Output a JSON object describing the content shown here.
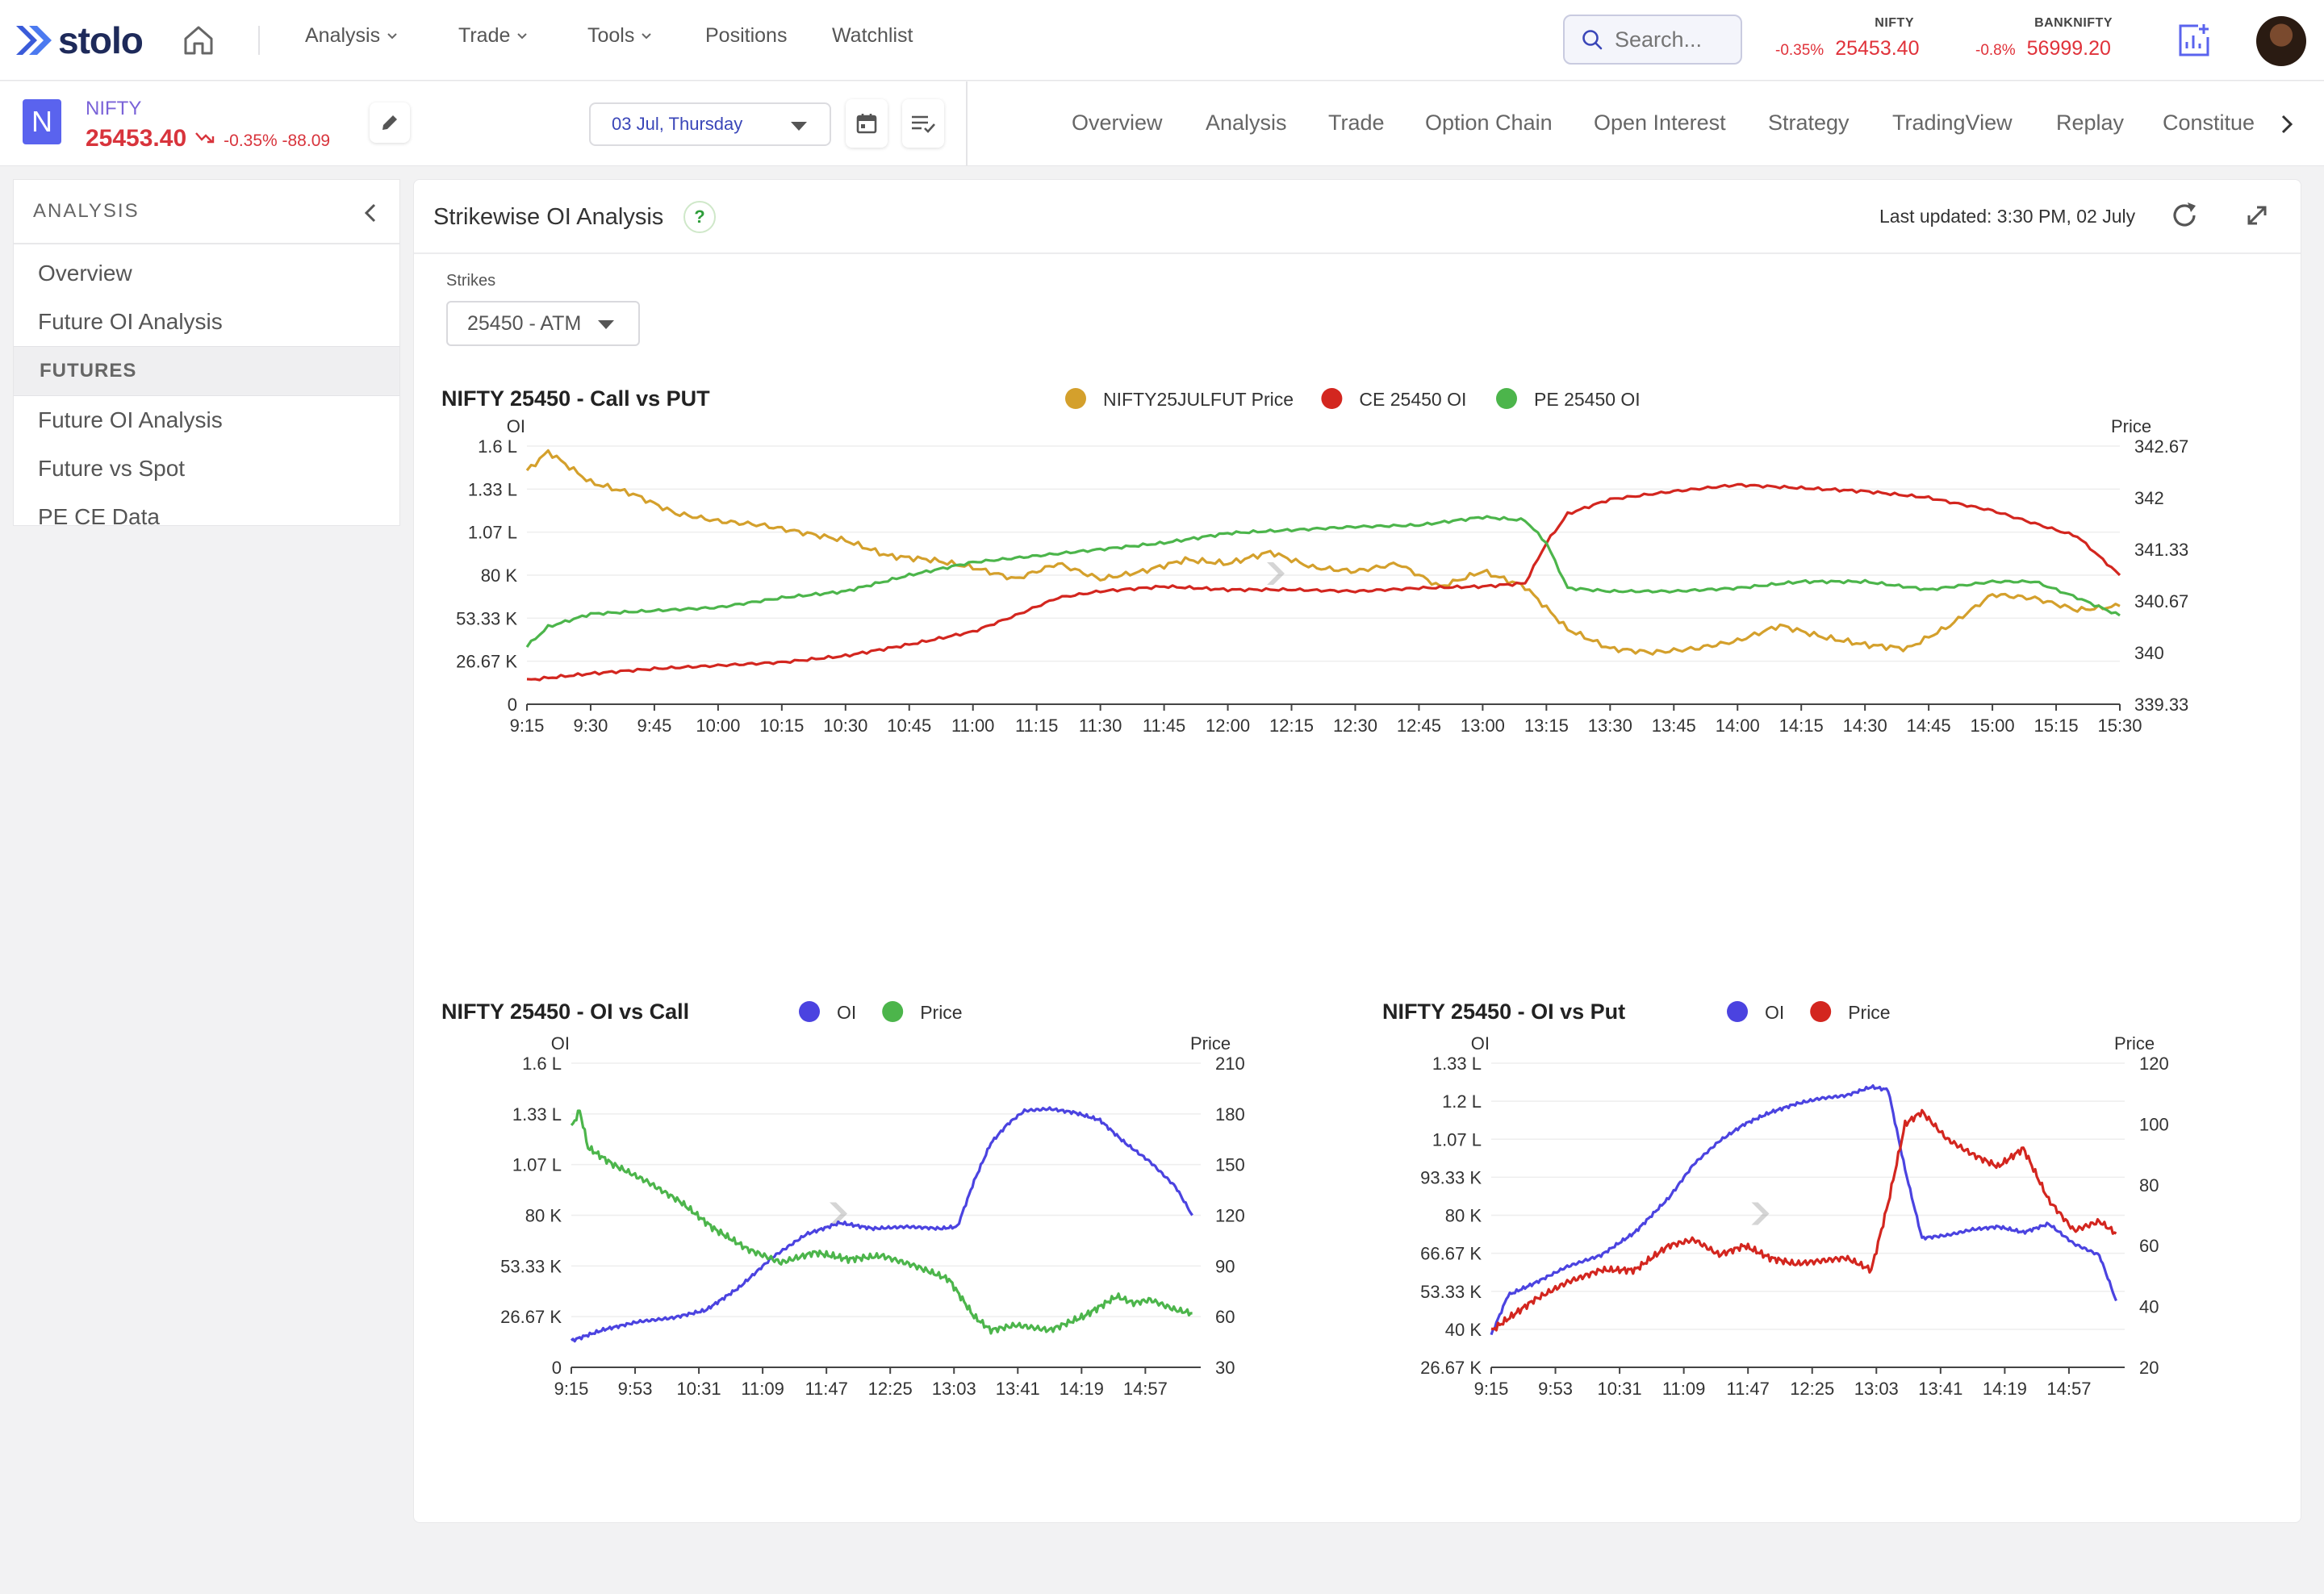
{
  "brand": {
    "name": "stolo"
  },
  "nav": {
    "items": [
      {
        "label": "Analysis",
        "dropdown": true
      },
      {
        "label": "Trade",
        "dropdown": true
      },
      {
        "label": "Tools",
        "dropdown": true
      },
      {
        "label": "Positions",
        "dropdown": false
      },
      {
        "label": "Watchlist",
        "dropdown": false
      }
    ],
    "search_placeholder": "Search..."
  },
  "tickers": [
    {
      "name": "NIFTY",
      "pct": "-0.35%",
      "value": "25453.40"
    },
    {
      "name": "BANKNIFTY",
      "pct": "-0.8%",
      "value": "56999.20"
    }
  ],
  "symbol": {
    "badge": "N",
    "name": "NIFTY",
    "price": "25453.40",
    "change": "-0.35% -88.09"
  },
  "date_selector": {
    "value": "03 Jul, Thursday"
  },
  "tabs": [
    "Overview",
    "Analysis",
    "Trade",
    "Option Chain",
    "Open Interest",
    "Strategy",
    "TradingView",
    "Replay",
    "Constitue"
  ],
  "sidebar": {
    "header": "ANALYSIS",
    "items_top": [
      "Overview",
      "Future OI Analysis"
    ],
    "group": "FUTURES",
    "items_group": [
      "Future OI Analysis",
      "Future vs Spot",
      "PE CE Data"
    ]
  },
  "panel": {
    "title": "Strikewise OI Analysis",
    "help": "?",
    "last_updated": "Last updated: 3:30 PM, 02 July",
    "strikes_label": "Strikes",
    "strikes_value": "25450 - ATM"
  },
  "colors": {
    "gold": "#d4a02c",
    "red": "#d3261f",
    "green": "#4cb54b",
    "blue": "#4b43e0",
    "accent": "#3a46b8"
  },
  "chart_data": [
    {
      "type": "line",
      "title": "NIFTY 25450 - Call vs PUT",
      "ylabel_left": "OI",
      "ylabel_right": "Price",
      "x_ticks": [
        "9:15",
        "9:30",
        "9:45",
        "10:00",
        "10:15",
        "10:30",
        "10:45",
        "11:00",
        "11:15",
        "11:30",
        "11:45",
        "12:00",
        "12:15",
        "12:30",
        "12:45",
        "13:00",
        "13:15",
        "13:30",
        "13:45",
        "14:00",
        "14:15",
        "14:30",
        "14:45",
        "15:00",
        "15:15",
        "15:30"
      ],
      "y_left_ticks": [
        "0",
        "26.67 K",
        "53.33 K",
        "80 K",
        "1.07 L",
        "1.33 L",
        "1.6 L"
      ],
      "y_right_ticks": [
        "339.33",
        "340",
        "340.67",
        "341.33",
        "342",
        "342.67"
      ],
      "ylim_left": [
        0,
        160000
      ],
      "ylim_right": [
        339.33,
        342.67
      ],
      "legend": "top-center",
      "series": [
        {
          "name": "NIFTY25JULFUT Price",
          "axis": "right",
          "color": "#d4a02c",
          "x": [
            "9:15",
            "9:20",
            "9:30",
            "9:40",
            "9:50",
            "10:00",
            "10:10",
            "10:20",
            "10:30",
            "10:40",
            "10:50",
            "11:00",
            "11:10",
            "11:20",
            "11:30",
            "11:40",
            "11:50",
            "12:00",
            "12:10",
            "12:20",
            "12:30",
            "12:40",
            "12:50",
            "13:00",
            "13:10",
            "13:20",
            "13:30",
            "13:40",
            "13:50",
            "14:00",
            "14:10",
            "14:20",
            "14:30",
            "14:40",
            "14:50",
            "15:00",
            "15:10",
            "15:20",
            "15:30"
          ],
          "values": [
            342.35,
            342.6,
            342.2,
            342.05,
            341.8,
            341.7,
            341.65,
            341.55,
            341.45,
            341.25,
            341.2,
            341.1,
            340.95,
            341.15,
            340.95,
            341.05,
            341.2,
            341.15,
            341.3,
            341.1,
            341.05,
            341.15,
            340.85,
            341.05,
            340.85,
            340.3,
            340.05,
            340.0,
            340.05,
            340.15,
            340.35,
            340.2,
            340.1,
            340.05,
            340.35,
            340.75,
            340.7,
            340.55,
            340.6
          ]
        },
        {
          "name": "CE 25450 OI",
          "axis": "left",
          "color": "#d3261f",
          "x": [
            "9:15",
            "9:30",
            "9:45",
            "10:00",
            "10:15",
            "10:30",
            "10:45",
            "11:00",
            "11:10",
            "11:20",
            "11:30",
            "11:45",
            "12:00",
            "12:15",
            "12:30",
            "12:45",
            "13:00",
            "13:10",
            "13:15",
            "13:20",
            "13:30",
            "13:45",
            "14:00",
            "14:15",
            "14:30",
            "14:45",
            "15:00",
            "15:10",
            "15:20",
            "15:30"
          ],
          "values": [
            15000,
            19000,
            22000,
            24000,
            26000,
            30000,
            37000,
            45000,
            55000,
            66000,
            70000,
            73000,
            71000,
            71000,
            70000,
            72000,
            73000,
            75000,
            100000,
            118000,
            127000,
            132000,
            136000,
            134000,
            132000,
            128000,
            120000,
            112000,
            104000,
            80000
          ]
        },
        {
          "name": "PE 25450 OI",
          "axis": "left",
          "color": "#4cb54b",
          "x": [
            "9:15",
            "9:20",
            "9:30",
            "9:45",
            "10:00",
            "10:15",
            "10:30",
            "10:45",
            "11:00",
            "11:15",
            "11:30",
            "11:45",
            "12:00",
            "12:15",
            "12:30",
            "12:45",
            "13:00",
            "13:10",
            "13:15",
            "13:20",
            "13:30",
            "13:45",
            "14:00",
            "14:15",
            "14:30",
            "14:45",
            "15:00",
            "15:10",
            "15:20",
            "15:30"
          ],
          "values": [
            36000,
            48000,
            56000,
            58000,
            60000,
            66000,
            70000,
            80000,
            88000,
            92000,
            96000,
            100000,
            106000,
            108000,
            110000,
            111000,
            116000,
            114000,
            100000,
            72000,
            70000,
            70000,
            72000,
            76000,
            76000,
            71000,
            76000,
            76000,
            66000,
            55000
          ]
        }
      ]
    },
    {
      "type": "line",
      "title": "NIFTY 25450 - OI vs Call",
      "ylabel_left": "OI",
      "ylabel_right": "Price",
      "x_ticks": [
        "9:15",
        "9:53",
        "10:31",
        "11:09",
        "11:47",
        "12:25",
        "13:03",
        "13:41",
        "14:19",
        "14:57"
      ],
      "y_left_ticks": [
        "0",
        "26.67 K",
        "53.33 K",
        "80 K",
        "1.07 L",
        "1.33 L",
        "1.6 L"
      ],
      "y_right_ticks": [
        "30",
        "60",
        "90",
        "120",
        "150",
        "180",
        "210"
      ],
      "ylim_left": [
        0,
        160000
      ],
      "ylim_right": [
        30,
        210
      ],
      "legend": "top-center",
      "series": [
        {
          "name": "OI",
          "axis": "left",
          "color": "#4b43e0",
          "x": [
            "9:15",
            "9:35",
            "9:55",
            "10:15",
            "10:35",
            "10:55",
            "11:15",
            "11:35",
            "11:55",
            "12:15",
            "12:35",
            "12:55",
            "13:05",
            "13:15",
            "13:25",
            "13:35",
            "13:45",
            "14:00",
            "14:15",
            "14:30",
            "14:45",
            "15:00",
            "15:15",
            "15:25"
          ],
          "values": [
            14000,
            20000,
            24000,
            26000,
            30000,
            42000,
            58000,
            70000,
            76000,
            73000,
            74000,
            73000,
            74000,
            98000,
            118000,
            128000,
            135000,
            136000,
            134000,
            130000,
            118000,
            108000,
            95000,
            80000
          ]
        },
        {
          "name": "Price",
          "axis": "right",
          "color": "#4cb54b",
          "x": [
            "9:15",
            "9:20",
            "9:25",
            "9:40",
            "10:00",
            "10:20",
            "10:40",
            "11:00",
            "11:20",
            "11:40",
            "12:00",
            "12:20",
            "12:40",
            "13:00",
            "13:15",
            "13:25",
            "13:40",
            "14:00",
            "14:20",
            "14:40",
            "14:50",
            "15:00",
            "15:15",
            "15:25"
          ],
          "values": [
            172,
            182,
            160,
            150,
            140,
            128,
            112,
            100,
            92,
            98,
            94,
            96,
            90,
            82,
            60,
            52,
            55,
            52,
            60,
            72,
            68,
            70,
            64,
            62
          ]
        }
      ]
    },
    {
      "type": "line",
      "title": "NIFTY 25450 - OI vs Put",
      "ylabel_left": "OI",
      "ylabel_right": "Price",
      "x_ticks": [
        "9:15",
        "9:53",
        "10:31",
        "11:09",
        "11:47",
        "12:25",
        "13:03",
        "13:41",
        "14:19",
        "14:57"
      ],
      "y_left_ticks": [
        "26.67 K",
        "40 K",
        "53.33 K",
        "66.67 K",
        "80 K",
        "93.33 K",
        "1.07 L",
        "1.2 L",
        "1.33 L"
      ],
      "y_right_ticks": [
        "20",
        "40",
        "60",
        "80",
        "100",
        "120"
      ],
      "ylim_left": [
        26670,
        133330
      ],
      "ylim_right": [
        20,
        120
      ],
      "legend": "top-center",
      "series": [
        {
          "name": "OI",
          "axis": "left",
          "color": "#4b43e0",
          "x": [
            "9:15",
            "9:25",
            "9:40",
            "10:00",
            "10:20",
            "10:40",
            "11:00",
            "11:15",
            "11:30",
            "11:45",
            "12:00",
            "12:15",
            "12:30",
            "12:45",
            "13:00",
            "13:10",
            "13:20",
            "13:30",
            "13:45",
            "14:00",
            "14:15",
            "14:30",
            "14:45",
            "15:00",
            "15:15",
            "15:25"
          ],
          "values": [
            38000,
            52000,
            56000,
            62000,
            66000,
            74000,
            86000,
            98000,
            106000,
            112000,
            116000,
            119000,
            121000,
            122000,
            125000,
            124000,
            96000,
            72000,
            73000,
            75000,
            76000,
            74000,
            77000,
            70000,
            66000,
            50000
          ]
        },
        {
          "name": "Price",
          "axis": "right",
          "color": "#d3261f",
          "x": [
            "9:15",
            "9:25",
            "9:40",
            "10:00",
            "10:20",
            "10:40",
            "11:00",
            "11:15",
            "11:30",
            "11:45",
            "12:00",
            "12:15",
            "12:30",
            "12:45",
            "13:00",
            "13:10",
            "13:20",
            "13:30",
            "13:45",
            "14:00",
            "14:15",
            "14:30",
            "14:45",
            "15:00",
            "15:15",
            "15:25"
          ],
          "values": [
            32,
            36,
            42,
            48,
            52,
            52,
            60,
            62,
            57,
            60,
            56,
            54,
            55,
            56,
            52,
            74,
            100,
            104,
            95,
            90,
            86,
            92,
            75,
            65,
            68,
            64
          ]
        }
      ]
    }
  ]
}
